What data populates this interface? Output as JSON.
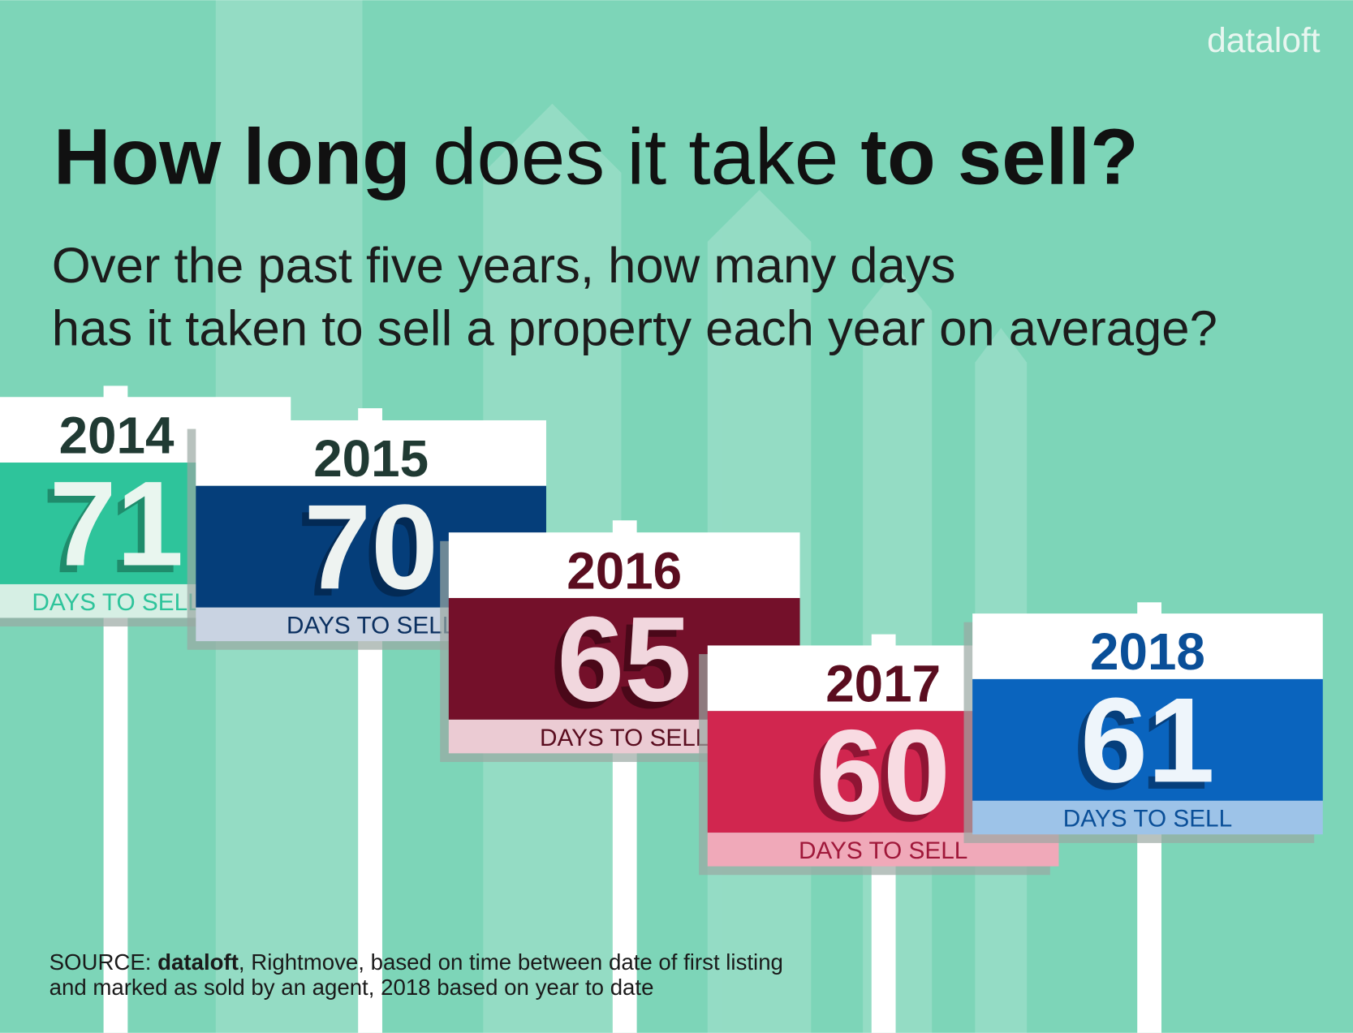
{
  "brand": "dataloft",
  "header": {
    "title_parts": [
      {
        "text": "How long",
        "bold": true
      },
      {
        "text": " does it take ",
        "bold": false
      },
      {
        "text": "to sell?",
        "bold": true
      }
    ],
    "subtitle_lines": [
      "Over the past five years, how many days",
      "has it taken to sell a property each year on average?"
    ]
  },
  "sign_label": "DAYS TO SELL",
  "signs": [
    {
      "year": "2014",
      "days": "71",
      "band": "#2ec49b",
      "foot": "#d6efe4",
      "year_color": "#203a33",
      "num_color": "#e9f6ef",
      "num_shadow": "#1f8c6c",
      "label_color": "#2ec49b"
    },
    {
      "year": "2015",
      "days": "70",
      "band": "#053e7a",
      "foot": "#c9d3e2",
      "year_color": "#203a33",
      "num_color": "#eef3f1",
      "num_shadow": "#032a55",
      "label_color": "#0b3060"
    },
    {
      "year": "2016",
      "days": "65",
      "band": "#74102a",
      "foot": "#ebcbd3",
      "year_color": "#5a0d1f",
      "num_color": "#f1d7de",
      "num_shadow": "#4a0819",
      "label_color": "#5a0d1f"
    },
    {
      "year": "2017",
      "days": "60",
      "band": "#d1264f",
      "foot": "#f0a9b9",
      "year_color": "#5a0d1f",
      "num_color": "#f8dbe2",
      "num_shadow": "#8f1534",
      "label_color": "#a0183a"
    },
    {
      "year": "2018",
      "days": "61",
      "band": "#0a64be",
      "foot": "#9dc3e8",
      "year_color": "#0a4f98",
      "num_color": "#eef5fb",
      "num_shadow": "#063f7c",
      "label_color": "#0a4f98"
    }
  ],
  "source": {
    "lines": [
      [
        {
          "text": "SOURCE: ",
          "bold": false
        },
        {
          "text": "dataloft",
          "bold": true
        },
        {
          "text": ", Rightmove, based on time between date of first listing",
          "bold": false
        }
      ],
      [
        {
          "text": "and marked as sold by an agent, 2018 based on year to date",
          "bold": false
        }
      ]
    ]
  }
}
